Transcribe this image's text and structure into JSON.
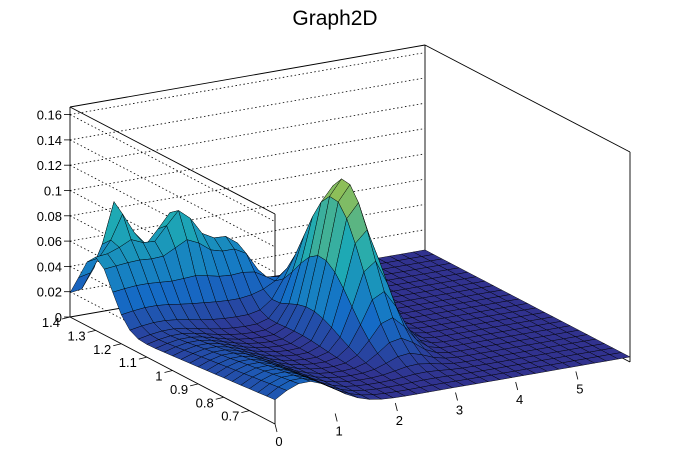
{
  "chart_data": {
    "type": "surface",
    "title": "Graph2D",
    "xlabel": "",
    "ylabel": "",
    "zlabel": "",
    "xlim": [
      0,
      5.9
    ],
    "ylim": [
      0.6,
      1.4
    ],
    "zlim": [
      0,
      0.166
    ],
    "x_ticks": [
      "0",
      "1",
      "2",
      "3",
      "4",
      "5"
    ],
    "y_ticks": [
      "0.7",
      "0.8",
      "0.9",
      "1",
      "1.1",
      "1.2",
      "1.3",
      "1.4"
    ],
    "z_ticks": [
      "0",
      "0.02",
      "0.04",
      "0.06",
      "0.08",
      "0.1",
      "0.12",
      "0.14",
      "0.16"
    ],
    "grid": true,
    "colormap": "viridis-like",
    "colors": {
      "low": "#2a2a8e",
      "mid": "#2e9bb5",
      "high": "#f7e43a"
    },
    "features": [
      {
        "name": "peak",
        "x": 2.9,
        "y": 1.0,
        "z": 0.125
      },
      {
        "name": "spike",
        "x": 0.6,
        "y": 1.38,
        "z": 0.098
      },
      {
        "name": "ridge",
        "x_range": [
          0,
          2.0
        ],
        "y": 1.3,
        "z": 0.06
      }
    ]
  }
}
